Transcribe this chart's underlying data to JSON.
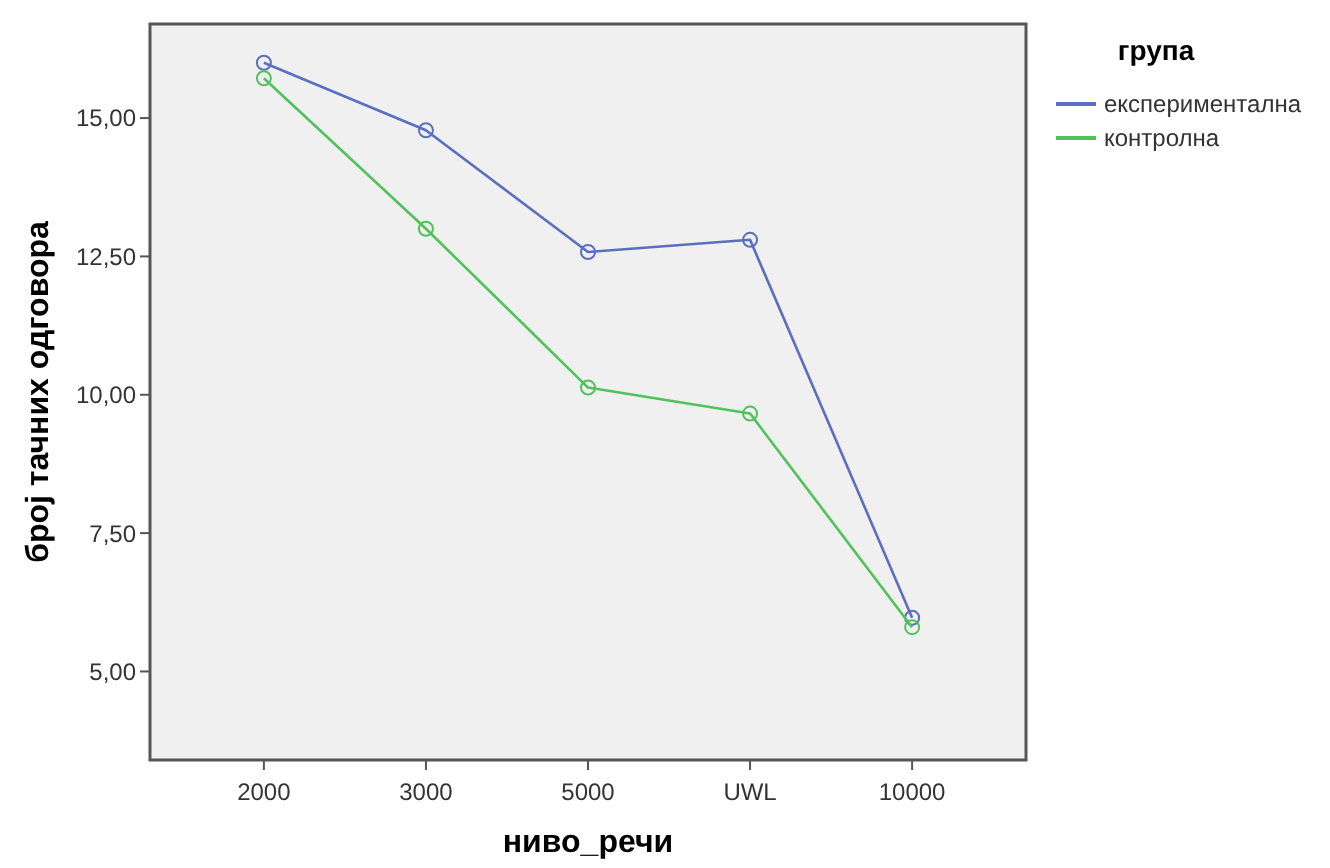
{
  "chart_data": {
    "type": "line",
    "xlabel": "ниво_речи",
    "ylabel": "број тачних одговора",
    "legend_title": "група",
    "categories": [
      "2000",
      "3000",
      "5000",
      "UWL",
      "10000"
    ],
    "series": [
      {
        "name": "експериментална",
        "color": "#5a6fc0",
        "values": [
          16.0,
          14.78,
          12.58,
          12.8,
          5.97
        ]
      },
      {
        "name": "контролна",
        "color": "#4fc35a",
        "values": [
          15.72,
          13.0,
          10.13,
          9.66,
          5.8
        ]
      }
    ],
    "ylim": [
      3.4,
      16.7
    ],
    "yticks": [
      {
        "value": 5,
        "label": "5,00"
      },
      {
        "value": 7.5,
        "label": "7,50"
      },
      {
        "value": 10,
        "label": "10,00"
      },
      {
        "value": 12.5,
        "label": "12,50"
      },
      {
        "value": 15,
        "label": "15,00"
      }
    ],
    "grid": false,
    "legend": "top right",
    "marker": "circle",
    "line_style": "solid"
  }
}
